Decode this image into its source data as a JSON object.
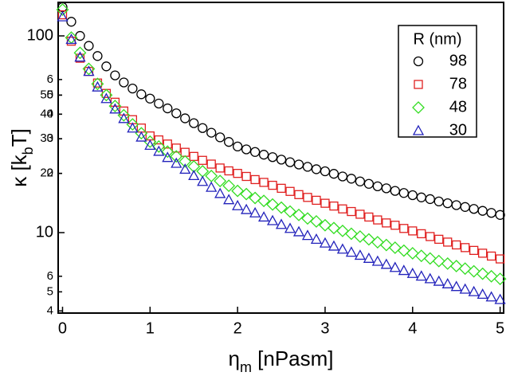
{
  "chart_data": {
    "type": "scatter",
    "xlabel": [
      "η",
      "m",
      " [nPasm]"
    ],
    "ylabel": [
      "κ [k",
      "b",
      "T]"
    ],
    "legend_title": "R (nm)",
    "legend": "upper right",
    "ylog": true,
    "xlim": [
      -0.05,
      5.04
    ],
    "ylim": [
      3.9,
      148
    ],
    "xticks": [
      0,
      1,
      2,
      3,
      4,
      5
    ],
    "yticks": [
      4,
      5,
      6,
      10,
      20,
      30,
      40,
      50,
      {
        "value": 60,
        "label": "6"
      },
      100,
      {
        "value": 20,
        "label": "2"
      },
      {
        "value": 30,
        "label": "3"
      },
      {
        "value": 40,
        "label": "4"
      },
      {
        "value": 50,
        "label": "5"
      }
    ],
    "x": [
      0,
      0.1,
      0.2,
      0.3,
      0.4,
      0.5,
      0.6,
      0.7,
      0.8,
      0.9,
      1,
      1.1,
      1.2,
      1.3,
      1.4,
      1.5,
      1.6,
      1.7,
      1.8,
      1.9,
      2,
      2.1,
      2.2,
      2.3,
      2.4,
      2.5,
      2.6,
      2.7,
      2.8,
      2.9,
      3,
      3.1,
      3.2,
      3.3,
      3.4,
      3.5,
      3.6,
      3.7,
      3.8,
      3.9,
      4,
      4.1,
      4.2,
      4.3,
      4.4,
      4.5,
      4.6,
      4.7,
      4.8,
      4.9,
      5
    ],
    "series": [
      {
        "name": "98",
        "color": "#000000",
        "marker": "circle",
        "values": [
          140,
          118,
          100,
          89,
          79,
          70,
          63,
          58,
          54,
          50.5,
          48,
          45.3,
          42.8,
          40.4,
          38.1,
          36,
          34,
          32.2,
          30.5,
          28.9,
          27.4,
          26.5,
          25.7,
          24.9,
          24.2,
          23.5,
          22.8,
          22.2,
          21.6,
          21.0,
          20.5,
          19.9,
          19.3,
          18.8,
          18.2,
          17.7,
          17.2,
          16.8,
          16.3,
          15.9,
          15.5,
          15.1,
          14.8,
          14.4,
          14.1,
          13.8,
          13.5,
          13.2,
          12.9,
          12.6,
          12.3
        ]
      },
      {
        "name": "78",
        "color": "#e02020",
        "marker": "square",
        "values": [
          128,
          94,
          77,
          66,
          57.6,
          51,
          46,
          41.5,
          37.5,
          34,
          31,
          29.6,
          28.2,
          26.9,
          25.6,
          24.4,
          23.3,
          22.3,
          21.3,
          20.6,
          20,
          19.3,
          18.6,
          18.0,
          17.4,
          16.8,
          16.2,
          15.6,
          15.1,
          14.6,
          14.1,
          13.65,
          13.2,
          12.8,
          12.4,
          12.0,
          11.6,
          11.2,
          10.9,
          10.5,
          10.2,
          9.87,
          9.55,
          9.25,
          8.95,
          8.66,
          8.39,
          8.12,
          7.86,
          7.6,
          7.35
        ]
      },
      {
        "name": "48",
        "color": "#33dd22",
        "marker": "diamond",
        "values": [
          136,
          98,
          82,
          68,
          57,
          50,
          44,
          39.5,
          35.5,
          32,
          29,
          27.4,
          25.8,
          24.4,
          23.0,
          21.7,
          20.5,
          19.4,
          18.3,
          17.3,
          16.3,
          15.7,
          15.0,
          14.5,
          13.9,
          13.4,
          12.8,
          12.3,
          11.8,
          11.4,
          10.9,
          10.55,
          10.2,
          9.87,
          9.55,
          9.24,
          8.94,
          8.65,
          8.38,
          8.1,
          7.85,
          7.62,
          7.39,
          7.17,
          6.96,
          6.76,
          6.56,
          6.36,
          6.18,
          6.0,
          5.82
        ]
      },
      {
        "name": "30",
        "color": "#2222bb",
        "marker": "triangle",
        "values": [
          125,
          96,
          78,
          66,
          55,
          48,
          42.5,
          38,
          34,
          30.6,
          27.8,
          25.9,
          24.1,
          22.5,
          21.0,
          19.5,
          18.2,
          17.0,
          15.8,
          14.7,
          13.7,
          13.1,
          12.6,
          12.0,
          11.5,
          11.0,
          10.5,
          10.1,
          9.67,
          9.25,
          8.85,
          8.54,
          8.24,
          7.95,
          7.67,
          7.4,
          7.15,
          6.9,
          6.65,
          6.42,
          6.2,
          6.01,
          5.83,
          5.66,
          5.49,
          5.32,
          5.16,
          5.01,
          4.86,
          4.71,
          4.57
        ]
      }
    ]
  }
}
